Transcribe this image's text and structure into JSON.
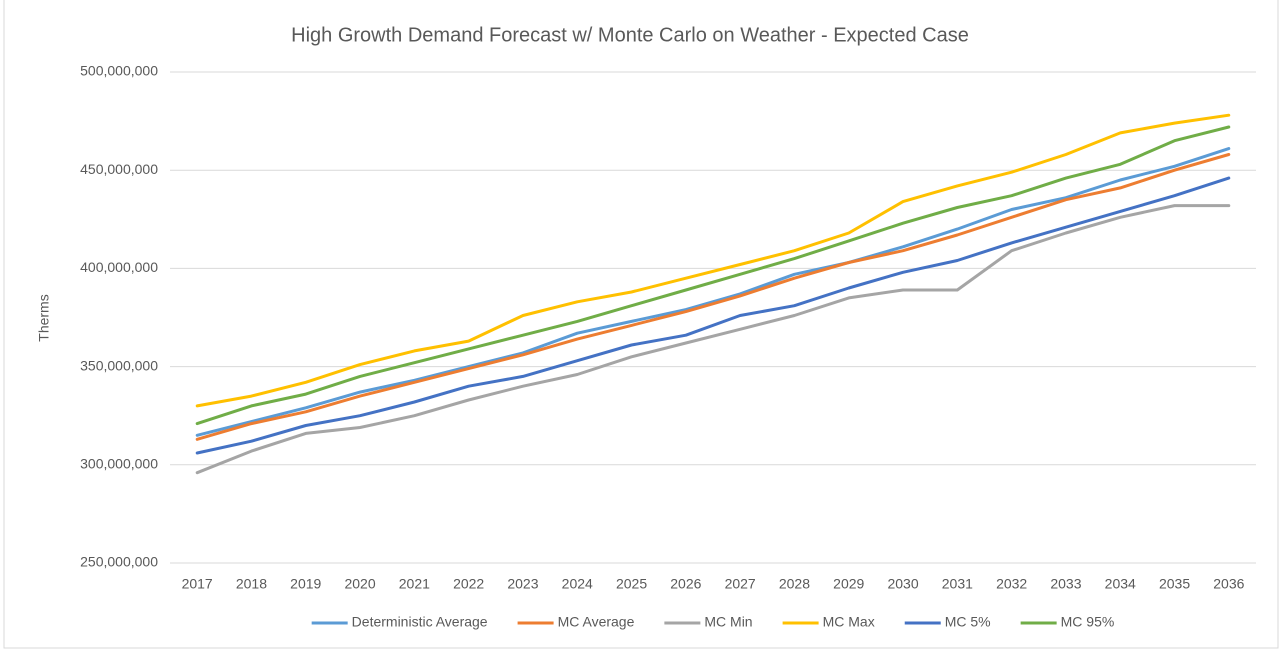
{
  "chart_data": {
    "type": "line",
    "title": "High Growth Demand Forecast w/ Monte Carlo on Weather - Expected Case",
    "y_label": "Therms",
    "categories": [
      "2017",
      "2018",
      "2019",
      "2020",
      "2021",
      "2022",
      "2023",
      "2024",
      "2025",
      "2026",
      "2027",
      "2028",
      "2029",
      "2030",
      "2031",
      "2032",
      "2033",
      "2034",
      "2035",
      "2036"
    ],
    "series": [
      {
        "name": "Deterministic Average",
        "color": "#5b9bd5",
        "values": [
          315000000,
          322000000,
          329000000,
          337000000,
          343000000,
          350000000,
          357000000,
          367000000,
          373000000,
          379000000,
          387000000,
          397000000,
          403000000,
          411000000,
          420000000,
          430000000,
          436000000,
          445000000,
          452000000,
          461000000
        ]
      },
      {
        "name": "MC Average",
        "color": "#ed7d31",
        "values": [
          313000000,
          321000000,
          327000000,
          335000000,
          342000000,
          349000000,
          356000000,
          364000000,
          371000000,
          378000000,
          386000000,
          395000000,
          403000000,
          409000000,
          417000000,
          426000000,
          435000000,
          441000000,
          450000000,
          458000000
        ]
      },
      {
        "name": "MC Min",
        "color": "#a5a5a5",
        "values": [
          296000000,
          307000000,
          316000000,
          319000000,
          325000000,
          333000000,
          340000000,
          346000000,
          355000000,
          362000000,
          369000000,
          376000000,
          385000000,
          389000000,
          389000000,
          409000000,
          418000000,
          426000000,
          432000000,
          432000000
        ]
      },
      {
        "name": "MC Max",
        "color": "#ffc000",
        "values": [
          330000000,
          335000000,
          342000000,
          351000000,
          358000000,
          363000000,
          376000000,
          383000000,
          388000000,
          395000000,
          402000000,
          409000000,
          418000000,
          434000000,
          442000000,
          449000000,
          458000000,
          469000000,
          474000000,
          478000000
        ]
      },
      {
        "name": "MC 5%",
        "color": "#4472c4",
        "values": [
          306000000,
          312000000,
          320000000,
          325000000,
          332000000,
          340000000,
          345000000,
          353000000,
          361000000,
          366000000,
          376000000,
          381000000,
          390000000,
          398000000,
          404000000,
          413000000,
          421000000,
          429000000,
          437000000,
          446000000
        ]
      },
      {
        "name": "MC 95%",
        "color": "#70ad47",
        "values": [
          321000000,
          330000000,
          336000000,
          345000000,
          352000000,
          359000000,
          366000000,
          373000000,
          381000000,
          389000000,
          397000000,
          405000000,
          414000000,
          423000000,
          431000000,
          437000000,
          446000000,
          453000000,
          465000000,
          472000000
        ]
      }
    ],
    "ylim": [
      250000000,
      500000000
    ],
    "yticks": [
      {
        "value": 250000000,
        "label": "250,000,000"
      },
      {
        "value": 300000000,
        "label": "300,000,000"
      },
      {
        "value": 350000000,
        "label": "350,000,000"
      },
      {
        "value": 400000000,
        "label": "400,000,000"
      },
      {
        "value": 450000000,
        "label": "450,000,000"
      },
      {
        "value": 500000000,
        "label": "500,000,000"
      }
    ],
    "grid": true,
    "legend": "bottom"
  }
}
